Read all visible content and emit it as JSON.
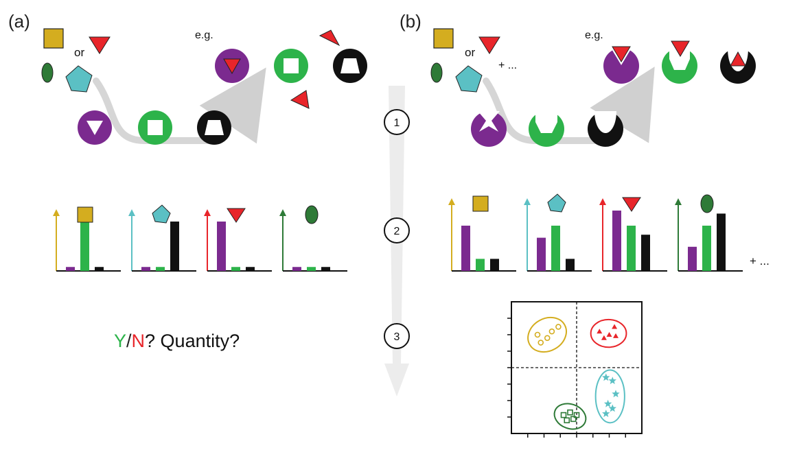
{
  "panels": {
    "a": {
      "label": "(a)"
    },
    "b": {
      "label": "(b)"
    }
  },
  "captions": {
    "or": "or",
    "eg": "e.g.",
    "more": "+ ...",
    "bars_more": "+ ..."
  },
  "steps": [
    "1",
    "2",
    "3"
  ],
  "question": {
    "y": "Y",
    "slash": "/",
    "n": "N",
    "rest": "? Quantity?"
  },
  "colors": {
    "purple": "#7b2a8f",
    "green": "#2db34a",
    "black": "#111111",
    "yellow": "#d4ad1f",
    "cyan": "#5bc0c4",
    "red": "#e8252a",
    "darkgreen": "#2e7a37",
    "arrow": "#cfcfcf"
  },
  "chart_data": [
    {
      "type": "bar",
      "panel": "a",
      "categories": [
        "purple",
        "green",
        "black"
      ],
      "series": [
        {
          "analyte": "yellow-square",
          "values": [
            0.08,
            1.0,
            0.08
          ]
        },
        {
          "analyte": "cyan-pentagon",
          "values": [
            0.08,
            0.08,
            1.0
          ]
        },
        {
          "analyte": "red-triangle",
          "values": [
            1.0,
            0.08,
            0.08
          ]
        },
        {
          "analyte": "green-ellipse",
          "values": [
            0.08,
            0.08,
            0.08
          ]
        }
      ]
    },
    {
      "type": "bar",
      "panel": "b",
      "categories": [
        "purple",
        "green",
        "black"
      ],
      "series": [
        {
          "analyte": "yellow-square",
          "values": [
            0.75,
            0.2,
            0.2
          ]
        },
        {
          "analyte": "cyan-pentagon",
          "values": [
            0.55,
            0.75,
            0.2
          ]
        },
        {
          "analyte": "red-triangle",
          "values": [
            1.0,
            0.75,
            0.6
          ]
        },
        {
          "analyte": "green-ellipse",
          "values": [
            0.4,
            0.75,
            0.95
          ]
        }
      ]
    },
    {
      "type": "scatter",
      "panel": "b",
      "clusters": [
        {
          "analyte": "yellow-square",
          "marker": "circle",
          "points": [
            [
              -0.6,
              0.5
            ],
            [
              -0.55,
              0.38
            ],
            [
              -0.45,
              0.45
            ],
            [
              -0.38,
              0.55
            ],
            [
              -0.28,
              0.62
            ]
          ]
        },
        {
          "analyte": "red-triangle",
          "marker": "triangle",
          "points": [
            [
              0.35,
              0.55
            ],
            [
              0.42,
              0.45
            ],
            [
              0.5,
              0.5
            ],
            [
              0.6,
              0.48
            ],
            [
              0.58,
              0.62
            ]
          ]
        },
        {
          "analyte": "cyan-pentagon",
          "marker": "star",
          "points": [
            [
              0.45,
              -0.15
            ],
            [
              0.55,
              -0.2
            ],
            [
              0.6,
              -0.4
            ],
            [
              0.48,
              -0.55
            ],
            [
              0.55,
              -0.62
            ],
            [
              0.45,
              -0.7
            ]
          ]
        },
        {
          "analyte": "green-ellipse",
          "marker": "square",
          "points": [
            [
              -0.2,
              -0.72
            ],
            [
              -0.1,
              -0.68
            ],
            [
              -0.05,
              -0.78
            ],
            [
              -0.15,
              -0.8
            ],
            [
              0.0,
              -0.72
            ]
          ]
        }
      ]
    }
  ]
}
